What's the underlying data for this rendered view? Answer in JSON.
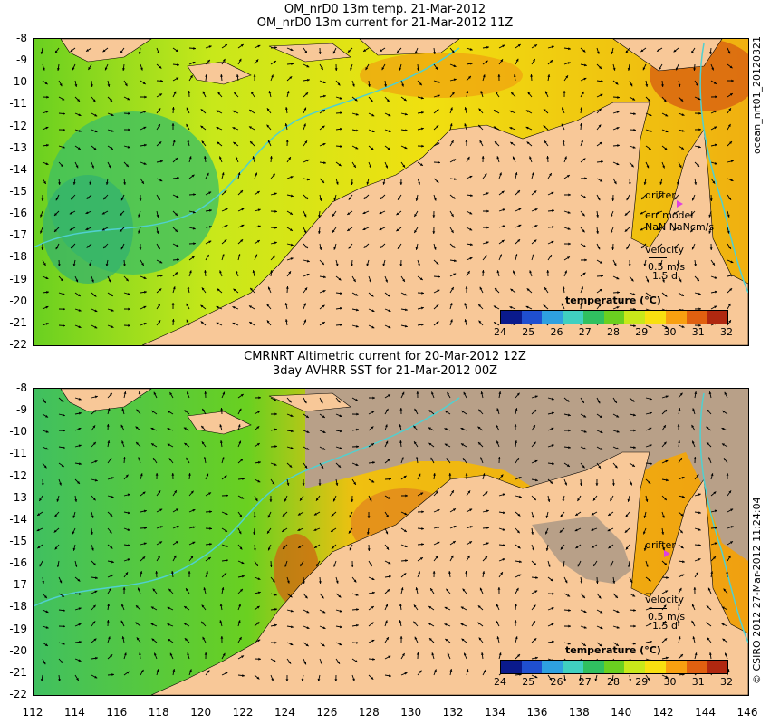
{
  "top": {
    "title_line1": "OM_nrD0 13m temp. 21-Mar-2012",
    "title_line2": "OM_nrD0 13m current for 21-Mar-2012 11Z",
    "drifter_label": "drifter",
    "err_label": "err model",
    "err_value": "NaN NaNcm/s",
    "velocity_label": "velocity",
    "velocity_scale": "0.5 m/s",
    "velocity_days": "1.5 d",
    "side_label": "ocean_nrt01_20120321"
  },
  "bottom": {
    "title_line1": "CMRNRT Altimetric current for 20-Mar-2012 12Z",
    "title_line2": "3day AVHRR SST for 21-Mar-2012 00Z",
    "drifter_label": "drifter",
    "velocity_label": "velocity",
    "velocity_scale": "0.5 m/s",
    "velocity_days": "1.5 d",
    "side_label": "© CSIRO 2012  27-Mar-2012 11:24:04"
  },
  "colorbar": {
    "title": "temperature (°C)",
    "ticks": [
      "24",
      "25",
      "26",
      "27",
      "28",
      "29",
      "30",
      "31",
      "32"
    ],
    "colors": [
      "#0a1a8c",
      "#1f4fd0",
      "#2ea0e0",
      "#40d0c0",
      "#30c060",
      "#6ad020",
      "#c8e81a",
      "#f8e010",
      "#f8a010",
      "#e06010",
      "#b02810"
    ]
  },
  "axes": {
    "lat_ticks": [
      "-8",
      "-9",
      "-10",
      "-11",
      "-12",
      "-13",
      "-14",
      "-15",
      "-16",
      "-17",
      "-18",
      "-19",
      "-20",
      "-21",
      "-22"
    ],
    "lon_ticks": [
      "112",
      "114",
      "116",
      "118",
      "120",
      "122",
      "124",
      "126",
      "128",
      "130",
      "132",
      "134",
      "136",
      "138",
      "140",
      "142",
      "144",
      "146"
    ]
  },
  "colors": {
    "land": "#f8c898",
    "nodata": "#b8a088",
    "drifter": "#e040e0",
    "contour": "#50d0d0"
  }
}
